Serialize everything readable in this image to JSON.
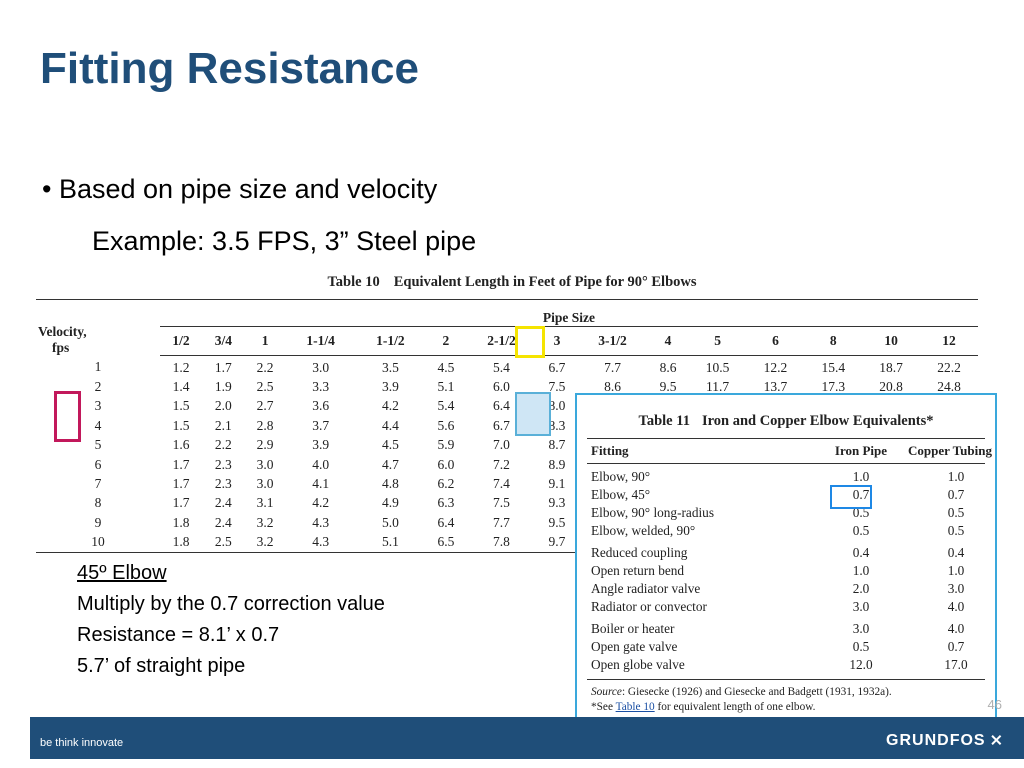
{
  "title": "Fitting Resistance",
  "bullet_text": "• Based on pipe size and velocity",
  "example_text": "Example: 3.5 FPS, 3”  Steel pipe",
  "table10": {
    "caption_num": "Table 10",
    "caption_text": "Equivalent Length in Feet of Pipe for 90° Elbows",
    "velocity_header_line1": "Velocity,",
    "velocity_header_line2": "fps",
    "pipe_size_header": "Pipe Size",
    "columns": [
      "1/2",
      "3/4",
      "1",
      "1-1/4",
      "1-1/2",
      "2",
      "2-1/2",
      "3",
      "3-1/2",
      "4",
      "5",
      "6",
      "8",
      "10",
      "12"
    ],
    "rows": [
      [
        "1",
        "1.2",
        "1.7",
        "2.2",
        "3.0",
        "3.5",
        "4.5",
        "5.4",
        "6.7",
        "7.7",
        "8.6",
        "10.5",
        "12.2",
        "15.4",
        "18.7",
        "22.2"
      ],
      [
        "2",
        "1.4",
        "1.9",
        "2.5",
        "3.3",
        "3.9",
        "5.1",
        "6.0",
        "7.5",
        "8.6",
        "9.5",
        "11.7",
        "13.7",
        "17.3",
        "20.8",
        "24.8"
      ],
      [
        "3",
        "1.5",
        "2.0",
        "2.7",
        "3.6",
        "4.2",
        "5.4",
        "6.4",
        "8.0",
        "",
        "",
        "",
        "",
        "",
        "",
        ""
      ],
      [
        "4",
        "1.5",
        "2.1",
        "2.8",
        "3.7",
        "4.4",
        "5.6",
        "6.7",
        "8.3",
        "",
        "",
        "",
        "",
        "",
        "",
        ""
      ],
      [
        "5",
        "1.6",
        "2.2",
        "2.9",
        "3.9",
        "4.5",
        "5.9",
        "7.0",
        "8.7",
        "",
        "",
        "",
        "",
        "",
        "",
        ""
      ],
      [
        "6",
        "1.7",
        "2.3",
        "3.0",
        "4.0",
        "4.7",
        "6.0",
        "7.2",
        "8.9",
        "",
        "",
        "",
        "",
        "",
        "",
        ""
      ],
      [
        "7",
        "1.7",
        "2.3",
        "3.0",
        "4.1",
        "4.8",
        "6.2",
        "7.4",
        "9.1",
        "",
        "",
        "",
        "",
        "",
        "",
        ""
      ],
      [
        "8",
        "1.7",
        "2.4",
        "3.1",
        "4.2",
        "4.9",
        "6.3",
        "7.5",
        "9.3",
        "",
        "",
        "",
        "",
        "",
        "",
        ""
      ],
      [
        "9",
        "1.8",
        "2.4",
        "3.2",
        "4.3",
        "5.0",
        "6.4",
        "7.7",
        "9.5",
        "",
        "",
        "",
        "",
        "",
        "",
        ""
      ],
      [
        "10",
        "1.8",
        "2.5",
        "3.2",
        "4.3",
        "5.1",
        "6.5",
        "7.8",
        "9.7",
        "",
        "",
        "",
        "",
        "",
        "",
        ""
      ]
    ]
  },
  "note": {
    "heading": "45º Elbow",
    "line1": "Multiply by the 0.7 correction value",
    "line2": "Resistance = 8.1’ x 0.7",
    "line3": "5.7’ of straight pipe"
  },
  "table11": {
    "caption_num": "Table 11",
    "caption_text": "Iron and Copper Elbow Equivalents*",
    "headers": [
      "Fitting",
      "Iron Pipe",
      "Copper Tubing"
    ],
    "rows": [
      [
        "Elbow, 90°",
        "1.0",
        "1.0"
      ],
      [
        "Elbow, 45°",
        "0.7",
        "0.7"
      ],
      [
        "Elbow, 90° long-radius",
        "0.5",
        "0.5"
      ],
      [
        "Elbow, welded, 90°",
        "0.5",
        "0.5"
      ],
      [
        "Reduced coupling",
        "0.4",
        "0.4"
      ],
      [
        "Open return bend",
        "1.0",
        "1.0"
      ],
      [
        "Angle radiator valve",
        "2.0",
        "3.0"
      ],
      [
        "Radiator or convector",
        "3.0",
        "4.0"
      ],
      [
        "Boiler or heater",
        "3.0",
        "4.0"
      ],
      [
        "Open gate valve",
        "0.5",
        "0.7"
      ],
      [
        "Open globe valve",
        "12.0",
        "17.0"
      ]
    ],
    "source_label": "Source",
    "source_text": ": Giesecke (1926) and Giesecke and Badgett (1931, 1932a).",
    "footnote_pre": "*See ",
    "footnote_link": "Table 10",
    "footnote_post": " for equivalent length of one elbow."
  },
  "page_number": "46",
  "footer": {
    "tagline": "be think innovate",
    "brand": "GRUNDFOS"
  },
  "colors": {
    "title": "#1f4e79",
    "footer_bg": "#1f4e79",
    "highlight_yellow": "#f5e400",
    "highlight_pink": "#c2185b",
    "highlight_cyan": "#5ab0d8"
  }
}
